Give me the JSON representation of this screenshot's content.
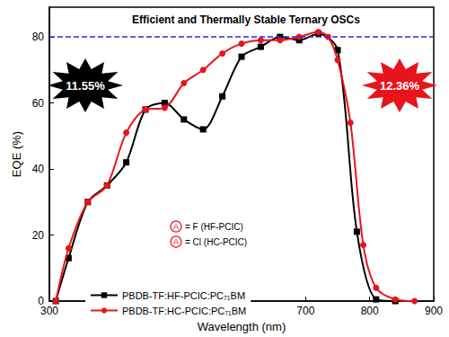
{
  "chart_data": {
    "type": "line",
    "title": "Efficient and Thermally Stable Ternary OSCs",
    "x_label": "Wavelength (nm)",
    "y_label": "EQE (%)",
    "xlim": [
      300,
      900
    ],
    "xticks": [
      300,
      400,
      500,
      600,
      700,
      800,
      900
    ],
    "ylim": [
      0,
      89
    ],
    "yticks": [
      0,
      20,
      40,
      60,
      80
    ],
    "grid": false,
    "legend": "lower left",
    "reference_line": {
      "value": 80,
      "color": "#2b2bd6",
      "line_style": "dashed"
    },
    "series": [
      {
        "name": "PBDB-TF:HF-PCIC:PC₇₁BM",
        "color": "#000000",
        "marker": "square",
        "line_style": "solid",
        "x": [
          310,
          330,
          360,
          390,
          420,
          450,
          480,
          510,
          540,
          570,
          600,
          630,
          660,
          690,
          720,
          750,
          780,
          810,
          840
        ],
        "values": [
          0,
          13,
          30,
          35,
          42,
          58,
          60,
          55,
          52,
          62,
          74,
          77,
          80,
          79,
          81,
          76,
          21,
          0.5,
          0
        ]
      },
      {
        "name": "PBDB-TF:HC-PCIC:PC₇₁BM",
        "color": "#e8141b",
        "marker": "circle",
        "line_style": "solid",
        "x": [
          310,
          330,
          360,
          390,
          420,
          450,
          480,
          510,
          540,
          570,
          600,
          630,
          660,
          690,
          720,
          735,
          750,
          770,
          790,
          810,
          840,
          870
        ],
        "values": [
          0,
          16,
          30,
          35,
          51,
          58,
          58.5,
          66,
          70,
          75,
          78,
          79,
          79,
          80,
          81.5,
          80,
          73,
          54,
          17,
          4,
          0.5,
          0
        ]
      }
    ],
    "annotations": [
      {
        "text": "11.55%",
        "color": "#000000"
      },
      {
        "text": "12.36%",
        "color": "#e8141b"
      }
    ],
    "structure_labels": {
      "marker": "A",
      "color": "#e8141b",
      "items": [
        "= F (HF-PCIC)",
        "= Cl (HC-PCIC)"
      ]
    }
  }
}
